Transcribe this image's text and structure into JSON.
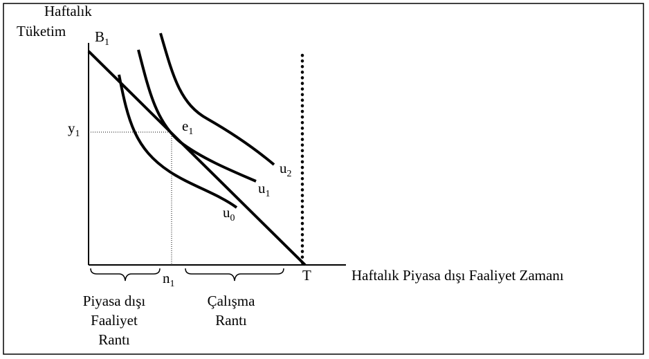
{
  "y_axis_label": [
    "Haftalık",
    "Tüketim"
  ],
  "x_axis_label": "Haftalık Piyasa dışı Faaliyet Zamanı",
  "points": {
    "B1": {
      "base": "B",
      "sub": "1"
    },
    "y1": {
      "base": "y",
      "sub": "1"
    },
    "e1": {
      "base": "e",
      "sub": "1"
    },
    "n1": {
      "base": "n",
      "sub": "1"
    },
    "T": "T"
  },
  "curves": [
    {
      "base": "u",
      "sub": "0"
    },
    {
      "base": "u",
      "sub": "1"
    },
    {
      "base": "u",
      "sub": "2"
    }
  ],
  "regions": [
    [
      "Piyasa dışı",
      "Faaliyet",
      "Rantı"
    ],
    [
      "Çalışma",
      "Rantı"
    ]
  ]
}
